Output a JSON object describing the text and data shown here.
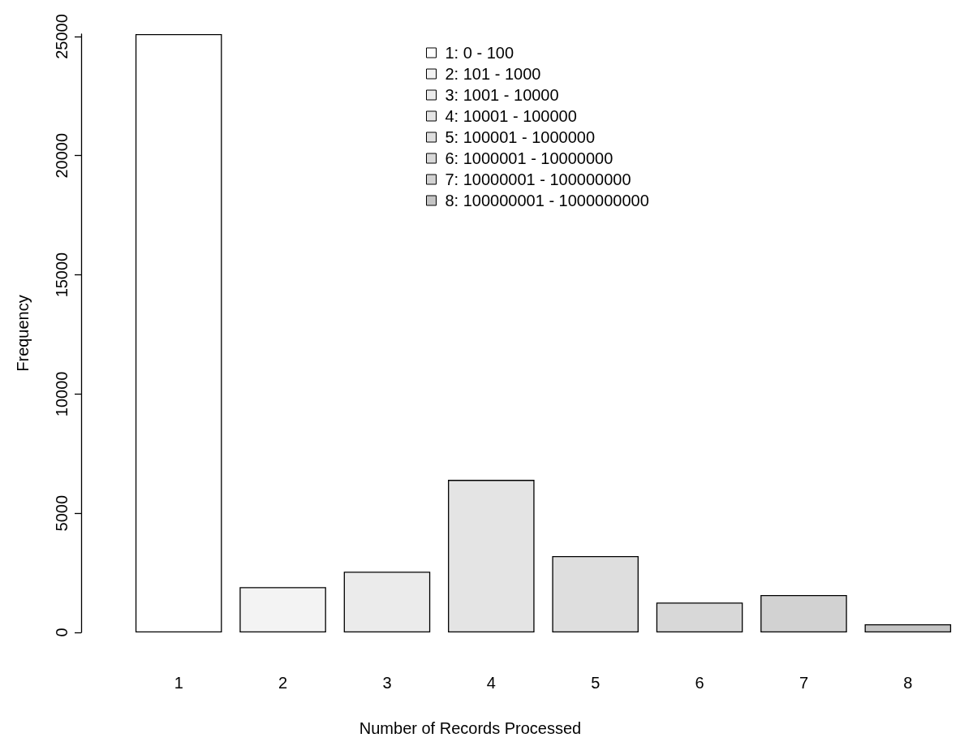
{
  "chart_data": {
    "type": "bar",
    "xlabel": "Number of Records Processed",
    "ylabel": "Frequency",
    "categories": [
      "1",
      "2",
      "3",
      "4",
      "5",
      "6",
      "7",
      "8"
    ],
    "stacked": true,
    "series": [
      {
        "name": "1: 0 - 100",
        "color": "#ffffff",
        "values": [
          25100,
          null,
          null,
          null,
          null,
          null,
          null,
          null
        ]
      },
      {
        "name": "2: 101 - 1000",
        "color": "#f3f3f3",
        "values": [
          null,
          1900,
          null,
          null,
          null,
          null,
          null,
          null
        ]
      },
      {
        "name": "3: 1001 - 10000",
        "color": "#ebebeb",
        "values": [
          null,
          null,
          2550,
          null,
          null,
          null,
          null,
          null
        ]
      },
      {
        "name": "4: 10001 - 100000",
        "color": "#e4e4e4",
        "values": [
          null,
          null,
          null,
          6400,
          null,
          null,
          null,
          null
        ]
      },
      {
        "name": "5: 100001 - 1000000",
        "color": "#dedede",
        "values": [
          null,
          null,
          null,
          null,
          3200,
          null,
          null,
          null
        ]
      },
      {
        "name": "6: 1000001 - 10000000",
        "color": "#d8d8d8",
        "values": [
          null,
          null,
          null,
          null,
          null,
          1250,
          null,
          null
        ]
      },
      {
        "name": "7: 10000001 - 100000000",
        "color": "#d2d2d2",
        "values": [
          null,
          null,
          null,
          null,
          null,
          null,
          1570,
          null
        ]
      },
      {
        "name": "8: 100000001 - 1000000000",
        "color": "#c4c4c4",
        "values": [
          null,
          null,
          null,
          null,
          null,
          null,
          null,
          340
        ]
      }
    ],
    "ylim": [
      0,
      25100
    ],
    "yticks": [
      0,
      5000,
      10000,
      15000,
      20000,
      25000
    ],
    "grid": false,
    "legend": "top"
  }
}
